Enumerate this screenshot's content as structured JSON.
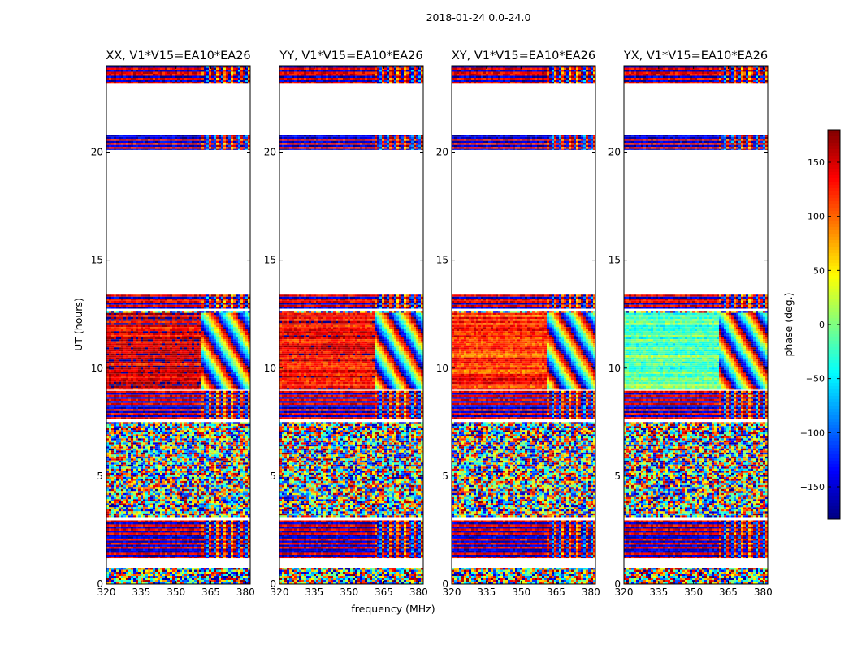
{
  "suptitle": "2018-01-24 0.0-24.0",
  "xlabel": "frequency (MHz)",
  "ylabel": "UT (hours)",
  "colorbar": {
    "label": "phase (deg.)",
    "ticks": [
      150,
      100,
      50,
      0,
      -50,
      -100,
      -150
    ],
    "tick_labels": [
      "150",
      "100",
      "50",
      "0",
      "−50",
      "−100",
      "−150"
    ],
    "range": [
      -180,
      180
    ],
    "colormap": "jet"
  },
  "chart_data": [
    {
      "type": "heatmap",
      "title": "XX, V1*V15=EA10*EA26",
      "xlim": [
        320,
        382
      ],
      "ylim": [
        0,
        24
      ],
      "xticks": [
        320,
        335,
        350,
        365,
        380
      ],
      "yticks": [
        0,
        5,
        10,
        15,
        20
      ],
      "coherent_phase_block": {
        "ut": [
          9.0,
          12.6
        ],
        "freq": [
          320,
          360
        ],
        "phase_deg": 150
      }
    },
    {
      "type": "heatmap",
      "title": "YY, V1*V15=EA10*EA26",
      "xlim": [
        320,
        382
      ],
      "ylim": [
        0,
        24
      ],
      "xticks": [
        320,
        335,
        350,
        365,
        380
      ],
      "yticks": [
        0,
        5,
        10,
        15,
        20
      ],
      "coherent_phase_block": {
        "ut": [
          9.0,
          12.6
        ],
        "freq": [
          320,
          360
        ],
        "phase_deg": 140
      }
    },
    {
      "type": "heatmap",
      "title": "XY, V1*V15=EA10*EA26",
      "xlim": [
        320,
        382
      ],
      "ylim": [
        0,
        24
      ],
      "xticks": [
        320,
        335,
        350,
        365,
        380
      ],
      "yticks": [
        0,
        5,
        10,
        15,
        20
      ],
      "coherent_phase_block": {
        "ut": [
          9.0,
          12.6
        ],
        "freq": [
          320,
          360
        ],
        "phase_deg": 120
      }
    },
    {
      "type": "heatmap",
      "title": "YX, V1*V15=EA10*EA26",
      "xlim": [
        320,
        382
      ],
      "ylim": [
        0,
        24
      ],
      "xticks": [
        320,
        335,
        350,
        365,
        380
      ],
      "yticks": [
        0,
        5,
        10,
        15,
        20
      ],
      "coherent_phase_block": {
        "ut": [
          9.0,
          12.6
        ],
        "freq": [
          320,
          360
        ],
        "phase_deg": -10
      }
    }
  ]
}
